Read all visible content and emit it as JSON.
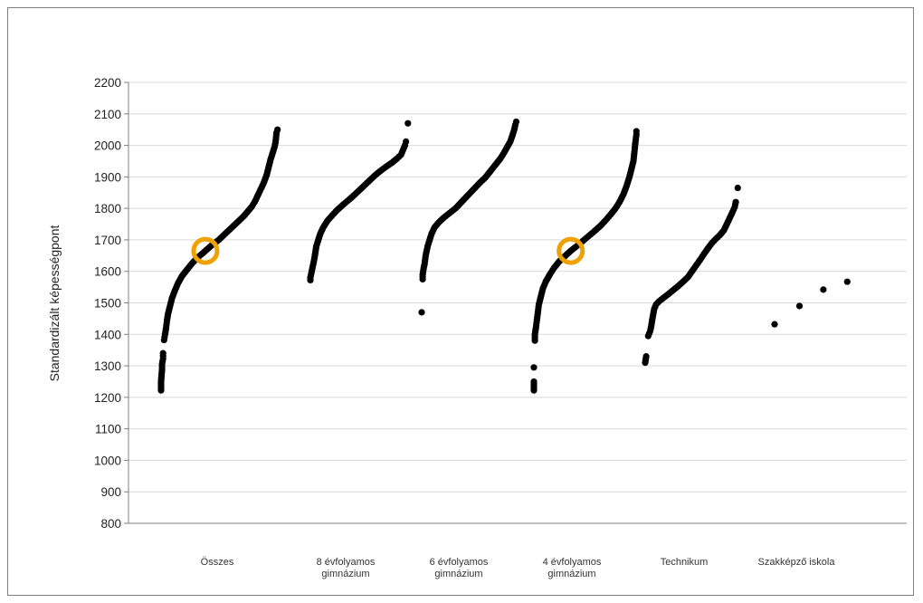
{
  "chart_data": {
    "type": "scatter",
    "title": "",
    "xlabel": "",
    "ylabel": "Standardizált képességpont",
    "ylim": [
      800,
      2200
    ],
    "yticks": [
      800,
      900,
      1000,
      1100,
      1200,
      1300,
      1400,
      1500,
      1600,
      1700,
      1800,
      1900,
      2000,
      2100,
      2200
    ],
    "grid": true,
    "legend": "none",
    "point_color": "#000000",
    "highlight_color": "#f0a000",
    "categories": [
      [
        "Összes"
      ],
      [
        "8 évfolyamos",
        "gimnázium"
      ],
      [
        "6 évfolyamos",
        "gimnázium"
      ],
      [
        "4 évfolyamos",
        "gimnázium"
      ],
      [
        "Technikum"
      ],
      [
        "Szakképző iskola"
      ]
    ],
    "series": [
      {
        "points": [
          [
            0.0,
            1222
          ],
          [
            0.0,
            1250
          ],
          [
            0.01,
            1290
          ],
          [
            0.01,
            1305
          ],
          [
            0.02,
            1323
          ],
          [
            0.02,
            1340
          ],
          [
            0.03,
            1382
          ],
          [
            0.04,
            1400
          ],
          [
            0.05,
            1420
          ],
          [
            0.06,
            1445
          ],
          [
            0.07,
            1465
          ],
          [
            0.09,
            1490
          ],
          [
            0.11,
            1515
          ],
          [
            0.14,
            1540
          ],
          [
            0.17,
            1562
          ],
          [
            0.21,
            1585
          ],
          [
            0.26,
            1605
          ],
          [
            0.31,
            1625
          ],
          [
            0.36,
            1642
          ],
          [
            0.42,
            1658
          ],
          [
            0.47,
            1672
          ],
          [
            0.52,
            1686
          ],
          [
            0.58,
            1700
          ],
          [
            0.63,
            1715
          ],
          [
            0.68,
            1730
          ],
          [
            0.73,
            1745
          ],
          [
            0.78,
            1760
          ],
          [
            0.83,
            1775
          ],
          [
            0.87,
            1790
          ],
          [
            0.91,
            1805
          ],
          [
            0.94,
            1820
          ],
          [
            0.97,
            1840
          ],
          [
            1.0,
            1860
          ],
          [
            1.03,
            1880
          ],
          [
            1.06,
            1905
          ],
          [
            1.08,
            1930
          ],
          [
            1.1,
            1955
          ],
          [
            1.12,
            1975
          ],
          [
            1.14,
            1995
          ],
          [
            1.15,
            2010
          ],
          [
            1.16,
            2040
          ],
          [
            1.17,
            2050
          ]
        ],
        "highlight": 1665
      },
      {
        "points": [
          [
            0.0,
            1572
          ],
          [
            0.0,
            1580
          ],
          [
            0.02,
            1610
          ],
          [
            0.03,
            1625
          ],
          [
            0.04,
            1640
          ],
          [
            0.05,
            1660
          ],
          [
            0.06,
            1680
          ],
          [
            0.08,
            1700
          ],
          [
            0.1,
            1720
          ],
          [
            0.13,
            1740
          ],
          [
            0.17,
            1760
          ],
          [
            0.22,
            1778
          ],
          [
            0.27,
            1795
          ],
          [
            0.33,
            1812
          ],
          [
            0.39,
            1828
          ],
          [
            0.45,
            1845
          ],
          [
            0.5,
            1860
          ],
          [
            0.55,
            1875
          ],
          [
            0.6,
            1890
          ],
          [
            0.65,
            1905
          ],
          [
            0.7,
            1918
          ],
          [
            0.76,
            1932
          ],
          [
            0.82,
            1945
          ],
          [
            0.87,
            1958
          ],
          [
            0.91,
            1970
          ],
          [
            0.93,
            1985
          ],
          [
            0.95,
            2000
          ],
          [
            0.96,
            2012
          ],
          [
            0.98,
            2070
          ]
        ],
        "highlight": null
      },
      {
        "points": [
          [
            0.0,
            1470
          ],
          [
            0.01,
            1575
          ],
          [
            0.01,
            1590
          ],
          [
            0.02,
            1610
          ],
          [
            0.03,
            1625
          ],
          [
            0.04,
            1650
          ],
          [
            0.05,
            1665
          ],
          [
            0.06,
            1680
          ],
          [
            0.08,
            1700
          ],
          [
            0.1,
            1720
          ],
          [
            0.13,
            1740
          ],
          [
            0.17,
            1755
          ],
          [
            0.22,
            1770
          ],
          [
            0.28,
            1785
          ],
          [
            0.34,
            1800
          ],
          [
            0.4,
            1820
          ],
          [
            0.46,
            1840
          ],
          [
            0.52,
            1860
          ],
          [
            0.58,
            1880
          ],
          [
            0.64,
            1898
          ],
          [
            0.69,
            1918
          ],
          [
            0.74,
            1938
          ],
          [
            0.79,
            1958
          ],
          [
            0.83,
            1978
          ],
          [
            0.86,
            1995
          ],
          [
            0.89,
            2012
          ],
          [
            0.91,
            2030
          ],
          [
            0.93,
            2050
          ],
          [
            0.94,
            2065
          ],
          [
            0.95,
            2075
          ]
        ],
        "highlight": null
      },
      {
        "points": [
          [
            0.0,
            1222
          ],
          [
            0.0,
            1250
          ],
          [
            0.0,
            1295
          ],
          [
            0.01,
            1380
          ],
          [
            0.01,
            1400
          ],
          [
            0.02,
            1420
          ],
          [
            0.03,
            1445
          ],
          [
            0.04,
            1470
          ],
          [
            0.05,
            1495
          ],
          [
            0.07,
            1520
          ],
          [
            0.09,
            1545
          ],
          [
            0.12,
            1568
          ],
          [
            0.16,
            1590
          ],
          [
            0.2,
            1610
          ],
          [
            0.25,
            1630
          ],
          [
            0.31,
            1648
          ],
          [
            0.37,
            1665
          ],
          [
            0.43,
            1680
          ],
          [
            0.49,
            1696
          ],
          [
            0.55,
            1712
          ],
          [
            0.61,
            1728
          ],
          [
            0.67,
            1745
          ],
          [
            0.72,
            1762
          ],
          [
            0.77,
            1780
          ],
          [
            0.82,
            1800
          ],
          [
            0.86,
            1820
          ],
          [
            0.9,
            1845
          ],
          [
            0.93,
            1870
          ],
          [
            0.96,
            1900
          ],
          [
            0.98,
            1925
          ],
          [
            1.0,
            1950
          ],
          [
            1.01,
            1980
          ],
          [
            1.02,
            2010
          ],
          [
            1.03,
            2035
          ],
          [
            1.03,
            2045
          ]
        ],
        "highlight": 1665
      },
      {
        "points": [
          [
            0.0,
            1310
          ],
          [
            0.01,
            1330
          ],
          [
            0.03,
            1395
          ],
          [
            0.05,
            1410
          ],
          [
            0.06,
            1425
          ],
          [
            0.07,
            1445
          ],
          [
            0.09,
            1480
          ],
          [
            0.11,
            1495
          ],
          [
            0.14,
            1505
          ],
          [
            0.18,
            1515
          ],
          [
            0.23,
            1527
          ],
          [
            0.28,
            1540
          ],
          [
            0.33,
            1553
          ],
          [
            0.38,
            1567
          ],
          [
            0.43,
            1582
          ],
          [
            0.47,
            1600
          ],
          [
            0.51,
            1618
          ],
          [
            0.55,
            1636
          ],
          [
            0.59,
            1655
          ],
          [
            0.63,
            1673
          ],
          [
            0.67,
            1690
          ],
          [
            0.71,
            1703
          ],
          [
            0.75,
            1715
          ],
          [
            0.79,
            1730
          ],
          [
            0.82,
            1750
          ],
          [
            0.85,
            1770
          ],
          [
            0.88,
            1790
          ],
          [
            0.9,
            1805
          ],
          [
            0.91,
            1820
          ],
          [
            0.93,
            1865
          ]
        ],
        "highlight": null
      },
      {
        "points": [
          [
            0.0,
            1432
          ],
          [
            0.25,
            1490
          ],
          [
            0.49,
            1542
          ],
          [
            0.73,
            1567
          ]
        ],
        "highlight": null
      }
    ]
  }
}
